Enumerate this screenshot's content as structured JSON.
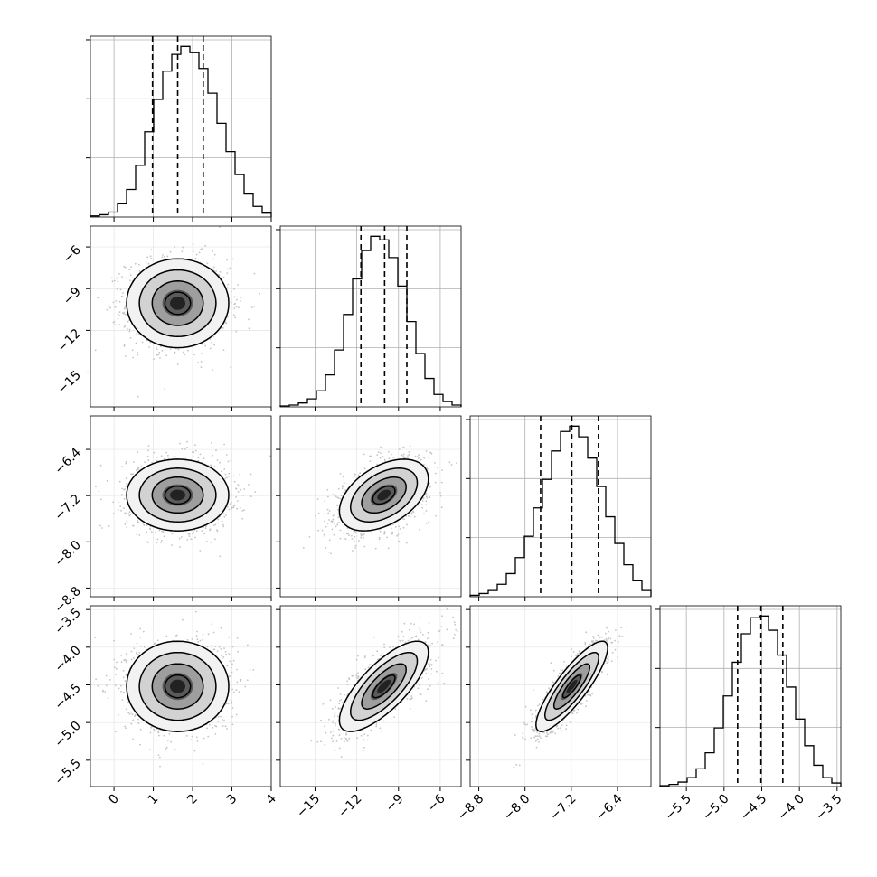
{
  "chart_data": {
    "type": "corner",
    "grid": true,
    "variables": [
      {
        "range": [
          -0.6,
          4.0
        ],
        "ticks": [
          0,
          1,
          2,
          3,
          4
        ],
        "tick_labels": [
          "0",
          "1",
          "2",
          "3",
          "4"
        ],
        "quantiles": [
          0.98,
          1.62,
          2.27
        ]
      },
      {
        "range": [
          -17.5,
          -4.5
        ],
        "ticks": [
          -15,
          -12,
          -9,
          -6
        ],
        "tick_labels": [
          "−15",
          "−12",
          "−9",
          "−6"
        ],
        "quantiles": [
          -11.7,
          -10.0,
          -8.4
        ]
      },
      {
        "range": [
          -8.95,
          -5.82
        ],
        "ticks": [
          -8.8,
          -8.0,
          -7.2,
          -6.4
        ],
        "tick_labels": [
          "−8.8",
          "−8.0",
          "−7.2",
          "−6.4"
        ],
        "quantiles": [
          -7.73,
          -7.19,
          -6.73
        ]
      },
      {
        "range": [
          -5.85,
          -3.45
        ],
        "ticks": [
          -5.5,
          -5.0,
          -4.5,
          -4.0,
          -3.5
        ],
        "tick_labels": [
          "−5.5",
          "−5.0",
          "−4.5",
          "−4.0",
          "−3.5"
        ],
        "quantiles": [
          -4.82,
          -4.51,
          -4.22
        ]
      }
    ],
    "histograms": [
      {
        "variable": 0,
        "bins": 20,
        "counts": [
          0.6,
          1.3,
          2.8,
          7.5,
          15.6,
          29.2,
          48.2,
          66.5,
          82.5,
          92.0,
          96.5,
          93.0,
          84.0,
          70.0,
          53.0,
          37.0,
          24.0,
          13.0,
          6.0,
          2.2
        ]
      },
      {
        "variable": 1,
        "bins": 20,
        "counts": [
          0.5,
          1.0,
          2.2,
          4.5,
          9.0,
          18.0,
          32.0,
          52.0,
          72.0,
          88.0,
          96.0,
          94.0,
          84.0,
          68.0,
          48.0,
          30.0,
          16.0,
          7.0,
          3.0,
          1.0
        ]
      },
      {
        "variable": 2,
        "bins": 20,
        "counts": [
          0.8,
          1.8,
          3.5,
          7.0,
          13.0,
          22.0,
          34.0,
          50.0,
          66.0,
          82.0,
          93.0,
          96.0,
          90.0,
          78.0,
          62.0,
          45.0,
          30.0,
          18.0,
          9.0,
          3.5
        ]
      },
      {
        "variable": 3,
        "bins": 20,
        "counts": [
          0.5,
          1.2,
          2.5,
          5.0,
          10.0,
          19.0,
          33.0,
          51.0,
          70.0,
          86.0,
          95.0,
          96.0,
          88.0,
          74.0,
          56.0,
          38.0,
          23.0,
          12.0,
          5.0,
          2.0
        ]
      }
    ],
    "pairs": [
      {
        "x": 1,
        "y": 0,
        "mean": [
          1.62,
          -10.05
        ],
        "sd": [
          0.65,
          1.6
        ],
        "corr": 0.0
      },
      {
        "x": 2,
        "y": 0,
        "mean": [
          1.62,
          -7.19
        ],
        "sd": [
          0.65,
          0.31
        ],
        "corr": 0.0
      },
      {
        "x": 2,
        "y": 1,
        "mean": [
          -10.05,
          -7.19
        ],
        "sd": [
          1.6,
          0.31
        ],
        "corr": 0.45
      },
      {
        "x": 3,
        "y": 0,
        "mean": [
          1.62,
          -4.52
        ],
        "sd": [
          0.65,
          0.3
        ],
        "corr": 0.0
      },
      {
        "x": 3,
        "y": 1,
        "mean": [
          -10.05,
          -4.52
        ],
        "sd": [
          1.6,
          0.3
        ],
        "corr": 0.75
      },
      {
        "x": 3,
        "y": 2,
        "mean": [
          -7.19,
          -4.52
        ],
        "sd": [
          0.31,
          0.3
        ],
        "corr": 0.85
      }
    ],
    "contour_levels_sigma": [
      0.5,
      1.0,
      1.5,
      2.0
    ]
  }
}
